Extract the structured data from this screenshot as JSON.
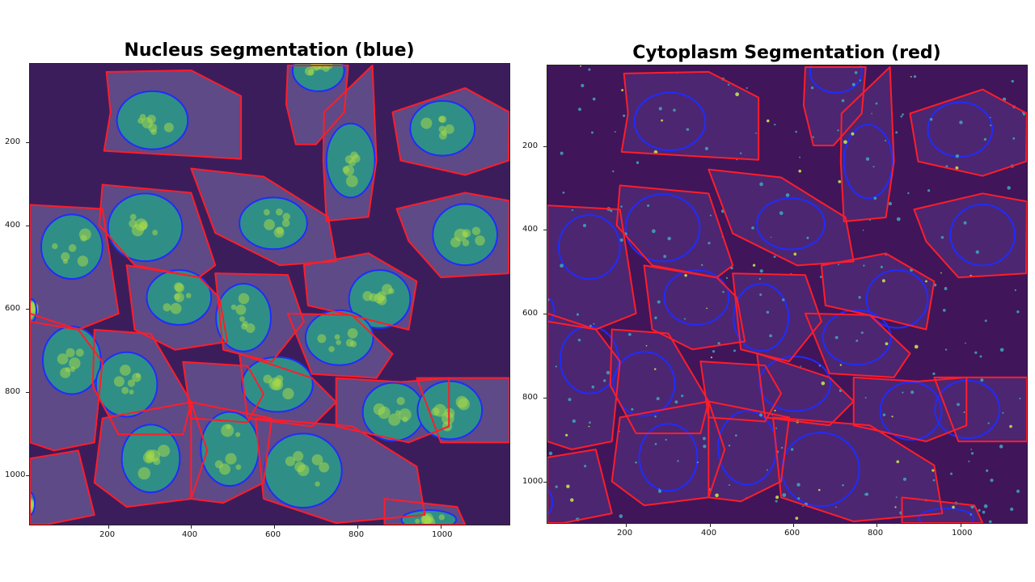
{
  "panels": [
    {
      "title": "Nucleus segmentation (blue)",
      "x_ticks": [
        "200",
        "400",
        "600",
        "800",
        "1000"
      ],
      "y_ticks": [
        "200",
        "400",
        "600",
        "800",
        "1000"
      ]
    },
    {
      "title": "Cytoplasm Segmentation (red)",
      "x_ticks": [
        "200",
        "400",
        "600",
        "800",
        "1000"
      ],
      "y_ticks": [
        "200",
        "400",
        "600",
        "800",
        "1000"
      ]
    }
  ],
  "colors": {
    "background_left": "#3c1d5c",
    "background_right": "#40155a",
    "cytoplasm_left": "#5e4a86",
    "cytoplasm_right": "#4c2670",
    "nucleus_fill": "#2f8f86",
    "nucleus_spot": "#a6d84a",
    "nucleus_outline": "#1f2cff",
    "cell_outline": "#ff1d2a",
    "spot_right": "#c8f04a"
  }
}
